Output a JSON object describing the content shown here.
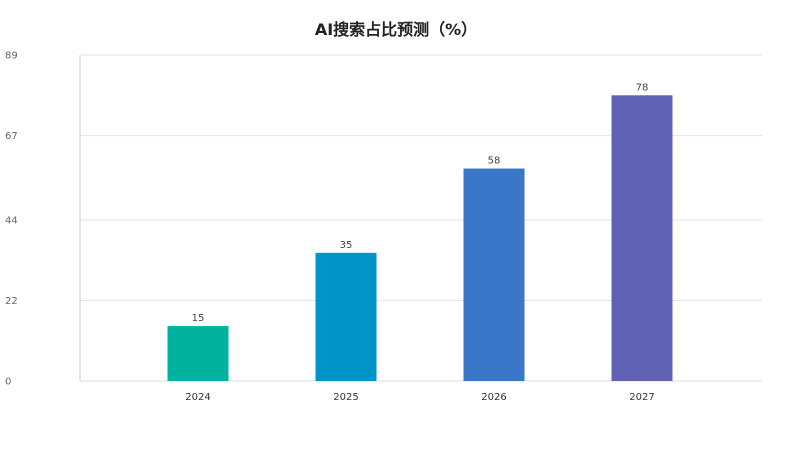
{
  "chart_data": {
    "type": "bar",
    "title": "AI搜索占比预测（%）",
    "xlabel": "",
    "ylabel": "",
    "categories": [
      "2024",
      "2025",
      "2026",
      "2027"
    ],
    "values": [
      15,
      35,
      58,
      78
    ],
    "bar_colors": [
      "#00b39f",
      "#0095c8",
      "#3a77c8",
      "#6262b4"
    ],
    "ylim": [
      0,
      89
    ],
    "y_ticks": [
      0,
      22,
      44,
      67,
      89
    ],
    "grid": true,
    "legend": "none",
    "data_labels": true
  }
}
